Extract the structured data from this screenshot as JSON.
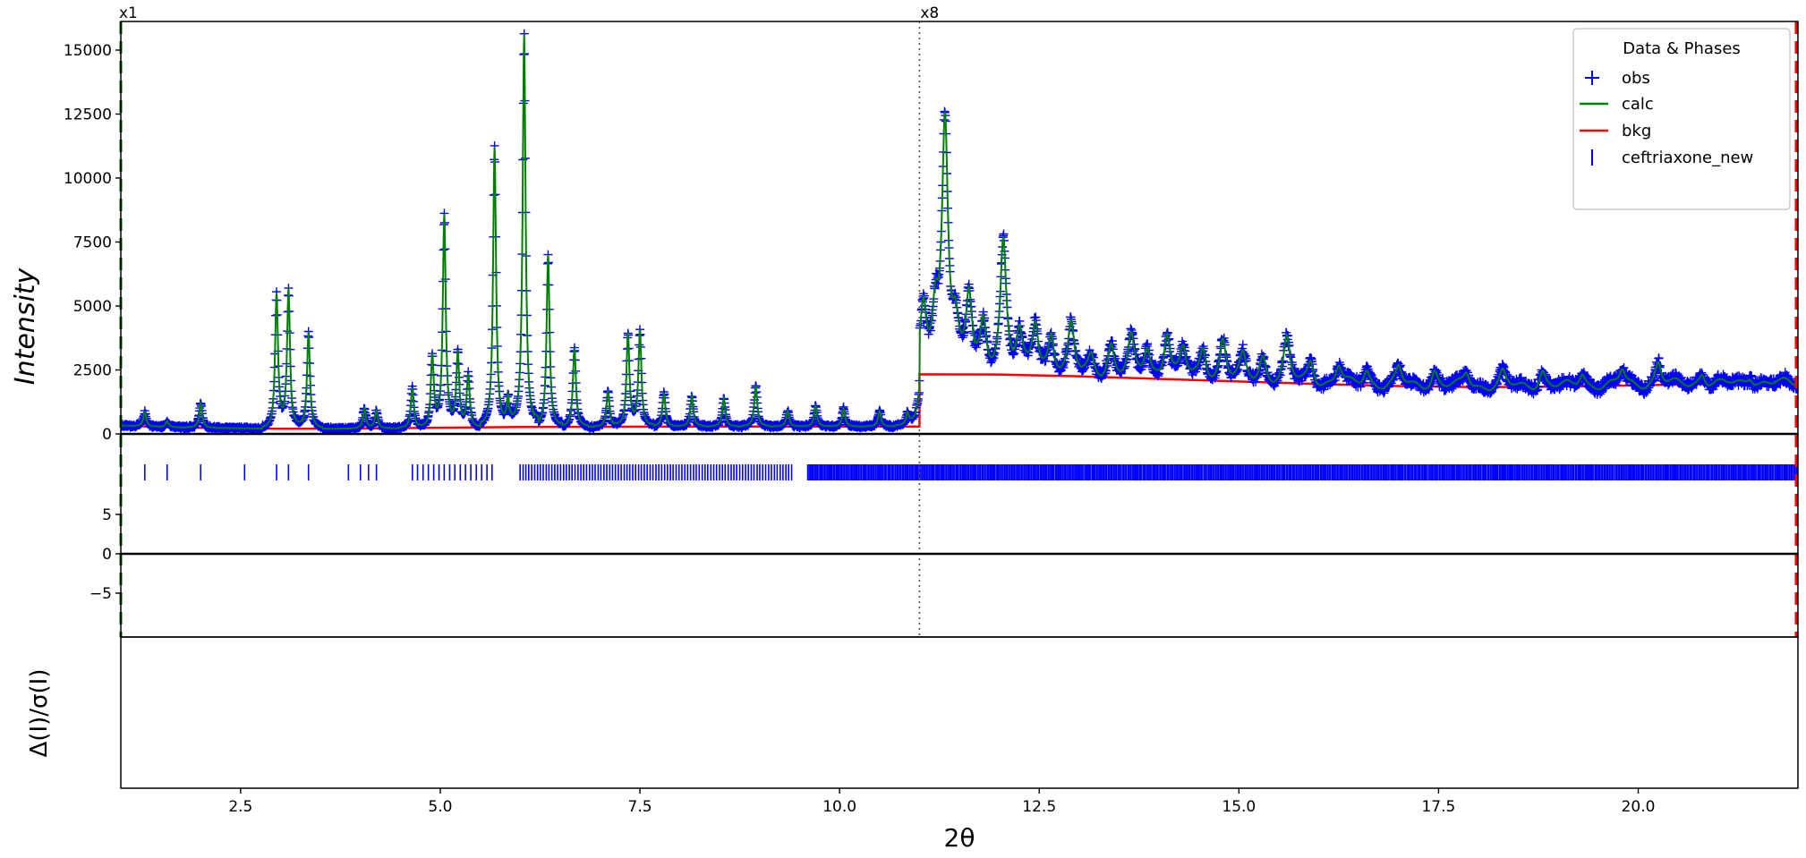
{
  "chart_data": {
    "type": "line",
    "panel_labels": {
      "left": "x1",
      "right": "x8"
    },
    "xlabel": "2θ",
    "ylabel_top": "Intensity",
    "ylabel_bottom": "Δ(I)/σ(I)",
    "xlim": [
      1.0,
      22.0
    ],
    "ylim_top": [
      -2300,
      16400
    ],
    "ylim_bottom": [
      -9,
      9
    ],
    "x_ticks": [
      {
        "value": 2.5,
        "label": "2.5"
      },
      {
        "value": 5.0,
        "label": "5.0"
      },
      {
        "value": 7.5,
        "label": "7.5"
      },
      {
        "value": 10.0,
        "label": "10.0"
      },
      {
        "value": 12.5,
        "label": "12.5"
      },
      {
        "value": 15.0,
        "label": "15.0"
      },
      {
        "value": 17.5,
        "label": "17.5"
      },
      {
        "value": 20.0,
        "label": "20.0"
      }
    ],
    "y_ticks_top": [
      {
        "value": 0,
        "label": "0"
      },
      {
        "value": 2500,
        "label": "2500"
      },
      {
        "value": 5000,
        "label": "5000"
      },
      {
        "value": 7500,
        "label": "7500"
      },
      {
        "value": 10000,
        "label": "10000"
      },
      {
        "value": 12500,
        "label": "12500"
      },
      {
        "value": 15000,
        "label": "15000"
      }
    ],
    "y_ticks_bottom": [
      {
        "value": -5,
        "label": "−5"
      },
      {
        "value": 0,
        "label": "0"
      },
      {
        "value": 5,
        "label": "5"
      }
    ],
    "scale_change_at": 11.0,
    "scale_factor_after": 8,
    "legend": {
      "title": "Data & Phases",
      "position": "top-right",
      "entries": [
        {
          "label": "obs",
          "marker": "+",
          "color": "#0000ff"
        },
        {
          "label": "calc",
          "marker": "line",
          "color": "#008000"
        },
        {
          "label": "bkg",
          "marker": "line",
          "color": "#ff0000"
        },
        {
          "label": "ceftriaxone_new",
          "marker": "|",
          "color": "#0000ff"
        }
      ]
    },
    "background": {
      "name": "bkg",
      "color": "#ff0000",
      "x": [
        1.0,
        1.5,
        2.0,
        3.0,
        4.0,
        5.0,
        6.0,
        8.0,
        10.0,
        11.0,
        11.0,
        12.0,
        13.0,
        14.0,
        15.0,
        16.0,
        17.0,
        18.0,
        19.0,
        20.0,
        21.0,
        22.0
      ],
      "y": [
        330,
        270,
        240,
        200,
        210,
        240,
        270,
        290,
        290,
        290,
        2330,
        2320,
        2250,
        2150,
        2050,
        1950,
        1870,
        1830,
        1850,
        1900,
        1960,
        2000
      ]
    },
    "peaks": [
      {
        "x": 1.3,
        "h": 850
      },
      {
        "x": 1.58,
        "h": 500
      },
      {
        "x": 2.0,
        "h": 1200
      },
      {
        "x": 2.95,
        "h": 5400
      },
      {
        "x": 3.1,
        "h": 5600
      },
      {
        "x": 3.35,
        "h": 4000
      },
      {
        "x": 4.05,
        "h": 1000
      },
      {
        "x": 4.2,
        "h": 900
      },
      {
        "x": 4.65,
        "h": 1800
      },
      {
        "x": 4.9,
        "h": 3000
      },
      {
        "x": 5.05,
        "h": 8500
      },
      {
        "x": 5.22,
        "h": 3100
      },
      {
        "x": 5.35,
        "h": 2300
      },
      {
        "x": 5.68,
        "h": 11200
      },
      {
        "x": 5.85,
        "h": 1400
      },
      {
        "x": 6.05,
        "h": 15600
      },
      {
        "x": 6.35,
        "h": 7000
      },
      {
        "x": 6.68,
        "h": 3400
      },
      {
        "x": 7.1,
        "h": 1700
      },
      {
        "x": 7.35,
        "h": 3900
      },
      {
        "x": 7.5,
        "h": 4000
      },
      {
        "x": 7.8,
        "h": 1600
      },
      {
        "x": 8.15,
        "h": 1500
      },
      {
        "x": 8.55,
        "h": 1400
      },
      {
        "x": 8.95,
        "h": 1900
      },
      {
        "x": 9.35,
        "h": 900
      },
      {
        "x": 9.7,
        "h": 1100
      },
      {
        "x": 10.05,
        "h": 1000
      },
      {
        "x": 10.5,
        "h": 900
      },
      {
        "x": 10.85,
        "h": 700
      },
      {
        "x": 11.05,
        "h": 4900
      },
      {
        "x": 11.2,
        "h": 4500
      },
      {
        "x": 11.32,
        "h": 12200
      },
      {
        "x": 11.45,
        "h": 4000
      },
      {
        "x": 11.62,
        "h": 5300
      },
      {
        "x": 11.8,
        "h": 4200
      },
      {
        "x": 12.05,
        "h": 7600
      },
      {
        "x": 12.25,
        "h": 3800
      },
      {
        "x": 12.45,
        "h": 4300
      },
      {
        "x": 12.65,
        "h": 3900
      },
      {
        "x": 12.9,
        "h": 4300
      },
      {
        "x": 13.15,
        "h": 3000
      },
      {
        "x": 13.4,
        "h": 3500
      },
      {
        "x": 13.65,
        "h": 3700
      },
      {
        "x": 13.85,
        "h": 3300
      },
      {
        "x": 14.1,
        "h": 4000
      },
      {
        "x": 14.3,
        "h": 3300
      },
      {
        "x": 14.55,
        "h": 3300
      },
      {
        "x": 14.8,
        "h": 3700
      },
      {
        "x": 15.05,
        "h": 3000
      },
      {
        "x": 15.3,
        "h": 3000
      },
      {
        "x": 15.6,
        "h": 3700
      },
      {
        "x": 15.9,
        "h": 2800
      },
      {
        "x": 16.25,
        "h": 2700
      },
      {
        "x": 16.6,
        "h": 2500
      },
      {
        "x": 17.0,
        "h": 2600
      },
      {
        "x": 17.45,
        "h": 2500
      },
      {
        "x": 17.85,
        "h": 2400
      },
      {
        "x": 18.3,
        "h": 2400
      },
      {
        "x": 18.8,
        "h": 2500
      },
      {
        "x": 19.3,
        "h": 2400
      },
      {
        "x": 19.8,
        "h": 2500
      },
      {
        "x": 20.25,
        "h": 2800
      },
      {
        "x": 20.8,
        "h": 2400
      },
      {
        "x": 21.4,
        "h": 2300
      }
    ],
    "reflection_tick_groups": [
      {
        "from": 1.3,
        "to": 1.3,
        "n": 1
      },
      {
        "from": 1.58,
        "to": 1.58,
        "n": 1
      },
      {
        "from": 2.0,
        "to": 2.0,
        "n": 1
      },
      {
        "from": 2.55,
        "to": 2.55,
        "n": 1
      },
      {
        "from": 2.95,
        "to": 3.1,
        "n": 2
      },
      {
        "from": 3.35,
        "to": 3.35,
        "n": 1
      },
      {
        "from": 3.85,
        "to": 3.85,
        "n": 1
      },
      {
        "from": 4.0,
        "to": 4.2,
        "n": 3
      },
      {
        "from": 4.65,
        "to": 5.65,
        "n": 16
      },
      {
        "from": 6.0,
        "to": 9.4,
        "n": 95
      },
      {
        "from": 9.6,
        "to": 22.0,
        "n": 700
      }
    ],
    "obs_series": {
      "name": "obs",
      "color": "#0000ff",
      "marker": "+"
    },
    "calc_series": {
      "name": "calc",
      "color": "#008000"
    },
    "residual_series": {
      "color": "#00bfbf"
    }
  }
}
